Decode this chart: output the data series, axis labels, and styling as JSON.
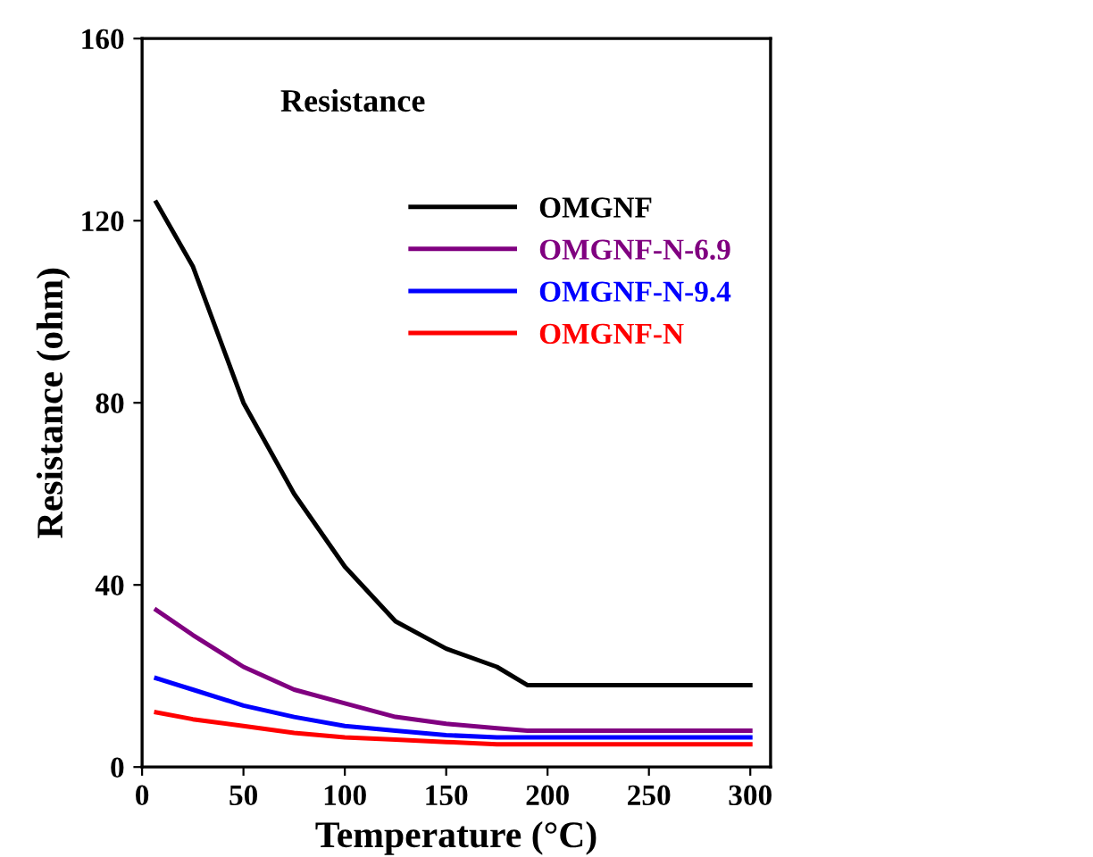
{
  "chart_data": {
    "type": "line",
    "title": "Resistance",
    "xlabel": "Temperature (°C)",
    "ylabel": "Resistance (ohm)",
    "xlim": [
      0,
      310
    ],
    "ylim": [
      0,
      160
    ],
    "xticks": [
      0,
      50,
      100,
      150,
      200,
      250,
      300
    ],
    "yticks": [
      0,
      40,
      80,
      120,
      160
    ],
    "grid": false,
    "legend": "top right",
    "marker": "none",
    "line_style": "solid",
    "series": [
      {
        "name": "OMGNF",
        "color": "#000000",
        "x": [
          7,
          25,
          50,
          75,
          100,
          125,
          150,
          175,
          190,
          200,
          250,
          300
        ],
        "values": [
          124,
          110,
          80,
          60,
          44,
          32,
          26,
          22,
          18,
          18,
          18,
          18
        ]
      },
      {
        "name": "OMGNF-N-6.9",
        "color": "#800080",
        "x": [
          7,
          25,
          50,
          75,
          100,
          125,
          150,
          175,
          190,
          200,
          250,
          300
        ],
        "values": [
          34.5,
          29,
          22,
          17,
          14,
          11,
          9.5,
          8.5,
          8,
          8,
          8,
          8
        ]
      },
      {
        "name": "OMGNF-N-9.4",
        "color": "#0000ff",
        "x": [
          7,
          25,
          50,
          75,
          100,
          125,
          150,
          175,
          190,
          200,
          250,
          300
        ],
        "values": [
          19.5,
          17,
          13.5,
          11,
          9,
          8,
          7,
          6.5,
          6.5,
          6.5,
          6.5,
          6.5
        ]
      },
      {
        "name": "OMGNF-N",
        "color": "#ff0000",
        "x": [
          7,
          25,
          50,
          75,
          100,
          125,
          150,
          175,
          190,
          200,
          250,
          300
        ],
        "values": [
          12,
          10.5,
          9,
          7.5,
          6.5,
          6,
          5.5,
          5,
          5,
          5,
          5,
          5
        ]
      }
    ]
  }
}
